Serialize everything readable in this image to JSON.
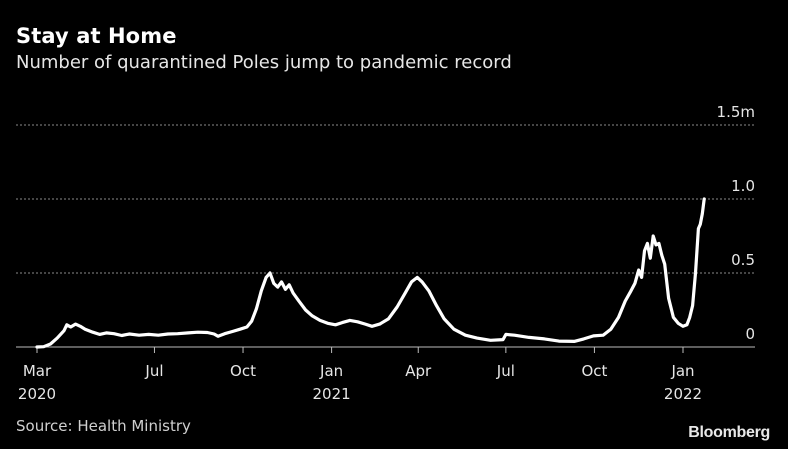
{
  "header": {
    "title": "Stay at Home",
    "subtitle": "Number of quarantined Poles jump to pandemic record"
  },
  "footer": {
    "source": "Source: Health Ministry",
    "brand": "Bloomberg"
  },
  "colors": {
    "background": "#000000",
    "line": "#ffffff",
    "grid": "#9a9a9a",
    "text": "#e6e6e6"
  },
  "chart_data": {
    "type": "line",
    "title": "Stay at Home",
    "subtitle": "Number of quarantined Poles jump to pandemic record",
    "xlabel": "",
    "ylabel": "",
    "ylim": [
      0,
      1500000
    ],
    "xlim": [
      "2020-03-01",
      "2022-03-01"
    ],
    "grid": "horizontal-dashed",
    "y_axis_position": "right",
    "y_ticks": [
      {
        "value": 0,
        "label": "0"
      },
      {
        "value": 500000,
        "label": "0.5"
      },
      {
        "value": 1000000,
        "label": "1.0"
      },
      {
        "value": 1500000,
        "label": "1.5m"
      }
    ],
    "x_ticks": [
      {
        "date": "2020-03-01",
        "label": "Mar",
        "year": "2020"
      },
      {
        "date": "2020-07-01",
        "label": "Jul",
        "year": ""
      },
      {
        "date": "2020-10-01",
        "label": "Oct",
        "year": ""
      },
      {
        "date": "2021-01-01",
        "label": "Jan",
        "year": "2021"
      },
      {
        "date": "2021-04-01",
        "label": "Apr",
        "year": ""
      },
      {
        "date": "2021-07-01",
        "label": "Jul",
        "year": ""
      },
      {
        "date": "2021-10-01",
        "label": "Oct",
        "year": ""
      },
      {
        "date": "2022-01-01",
        "label": "Jan",
        "year": "2022"
      }
    ],
    "series": [
      {
        "values": [
          [
            "2020-03-01",
            0
          ],
          [
            "2020-03-08",
            2000
          ],
          [
            "2020-03-15",
            20000
          ],
          [
            "2020-03-22",
            60000
          ],
          [
            "2020-03-29",
            110000
          ],
          [
            "2020-04-01",
            150000
          ],
          [
            "2020-04-05",
            135000
          ],
          [
            "2020-04-10",
            155000
          ],
          [
            "2020-04-15",
            140000
          ],
          [
            "2020-04-20",
            120000
          ],
          [
            "2020-04-28",
            100000
          ],
          [
            "2020-05-05",
            85000
          ],
          [
            "2020-05-12",
            95000
          ],
          [
            "2020-05-20",
            90000
          ],
          [
            "2020-05-28",
            78000
          ],
          [
            "2020-06-05",
            88000
          ],
          [
            "2020-06-15",
            80000
          ],
          [
            "2020-06-25",
            85000
          ],
          [
            "2020-07-05",
            80000
          ],
          [
            "2020-07-15",
            88000
          ],
          [
            "2020-07-25",
            90000
          ],
          [
            "2020-08-05",
            95000
          ],
          [
            "2020-08-15",
            100000
          ],
          [
            "2020-08-25",
            98000
          ],
          [
            "2020-09-01",
            88000
          ],
          [
            "2020-09-05",
            72000
          ],
          [
            "2020-09-12",
            90000
          ],
          [
            "2020-09-20",
            105000
          ],
          [
            "2020-09-28",
            120000
          ],
          [
            "2020-10-05",
            135000
          ],
          [
            "2020-10-10",
            175000
          ],
          [
            "2020-10-15",
            260000
          ],
          [
            "2020-10-20",
            380000
          ],
          [
            "2020-10-25",
            470000
          ],
          [
            "2020-10-29",
            500000
          ],
          [
            "2020-11-02",
            430000
          ],
          [
            "2020-11-06",
            405000
          ],
          [
            "2020-11-10",
            440000
          ],
          [
            "2020-11-14",
            390000
          ],
          [
            "2020-11-18",
            420000
          ],
          [
            "2020-11-22",
            365000
          ],
          [
            "2020-11-28",
            310000
          ],
          [
            "2020-12-05",
            250000
          ],
          [
            "2020-12-12",
            210000
          ],
          [
            "2020-12-20",
            180000
          ],
          [
            "2020-12-28",
            160000
          ],
          [
            "2021-01-05",
            150000
          ],
          [
            "2021-01-12",
            165000
          ],
          [
            "2021-01-20",
            180000
          ],
          [
            "2021-01-28",
            170000
          ],
          [
            "2021-02-05",
            155000
          ],
          [
            "2021-02-12",
            140000
          ],
          [
            "2021-02-20",
            155000
          ],
          [
            "2021-03-01",
            190000
          ],
          [
            "2021-03-10",
            270000
          ],
          [
            "2021-03-18",
            360000
          ],
          [
            "2021-03-25",
            440000
          ],
          [
            "2021-03-31",
            470000
          ],
          [
            "2021-04-05",
            440000
          ],
          [
            "2021-04-12",
            380000
          ],
          [
            "2021-04-20",
            280000
          ],
          [
            "2021-04-28",
            190000
          ],
          [
            "2021-05-08",
            120000
          ],
          [
            "2021-05-20",
            80000
          ],
          [
            "2021-06-01",
            60000
          ],
          [
            "2021-06-15",
            45000
          ],
          [
            "2021-06-28",
            50000
          ],
          [
            "2021-07-01",
            85000
          ],
          [
            "2021-07-10",
            80000
          ],
          [
            "2021-07-25",
            65000
          ],
          [
            "2021-08-10",
            55000
          ],
          [
            "2021-08-25",
            40000
          ],
          [
            "2021-09-10",
            38000
          ],
          [
            "2021-09-20",
            55000
          ],
          [
            "2021-09-30",
            75000
          ],
          [
            "2021-10-10",
            80000
          ],
          [
            "2021-10-18",
            120000
          ],
          [
            "2021-10-26",
            200000
          ],
          [
            "2021-11-02",
            310000
          ],
          [
            "2021-11-08",
            380000
          ],
          [
            "2021-11-12",
            430000
          ],
          [
            "2021-11-16",
            520000
          ],
          [
            "2021-11-19",
            470000
          ],
          [
            "2021-11-22",
            650000
          ],
          [
            "2021-11-25",
            700000
          ],
          [
            "2021-11-28",
            600000
          ],
          [
            "2021-12-01",
            750000
          ],
          [
            "2021-12-04",
            690000
          ],
          [
            "2021-12-07",
            700000
          ],
          [
            "2021-12-10",
            620000
          ],
          [
            "2021-12-13",
            560000
          ],
          [
            "2021-12-17",
            330000
          ],
          [
            "2021-12-22",
            200000
          ],
          [
            "2021-12-27",
            160000
          ],
          [
            "2022-01-01",
            140000
          ],
          [
            "2022-01-05",
            150000
          ],
          [
            "2022-01-08",
            200000
          ],
          [
            "2022-01-11",
            280000
          ],
          [
            "2022-01-14",
            500000
          ],
          [
            "2022-01-17",
            800000
          ],
          [
            "2022-01-19",
            830000
          ],
          [
            "2022-01-21",
            900000
          ],
          [
            "2022-01-23",
            1000000
          ]
        ]
      }
    ]
  }
}
